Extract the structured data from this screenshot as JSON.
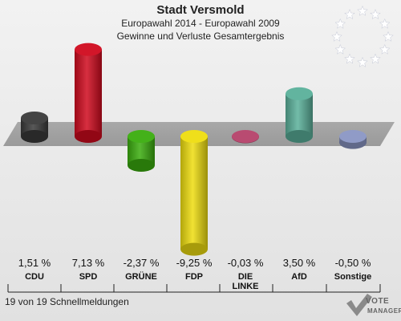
{
  "header": {
    "title": "Stadt Versmold",
    "subtitle": "Europawahl 2014 - Europawahl 2009",
    "subtitle2": "Gewinne und Verluste Gesamtergebnis"
  },
  "footer": {
    "text": "19 von 19 Schnellmeldungen"
  },
  "logo": {
    "name": "VOTE",
    "sub": "MANAGER",
    "icon": "vote-manager-check-icon"
  },
  "emblem": {
    "icon": "eu-stars-icon"
  },
  "chart_data": {
    "type": "bar",
    "title": "Stadt Versmold",
    "categories": [
      "CDU",
      "SPD",
      "GRÜNE",
      "FDP",
      "DIE LINKE",
      "AfD",
      "Sonstige"
    ],
    "category_labels": [
      [
        "CDU"
      ],
      [
        "SPD"
      ],
      [
        "GRÜNE"
      ],
      [
        "FDP"
      ],
      [
        "DIE",
        "LINKE"
      ],
      [
        "AfD"
      ],
      [
        "Sonstige"
      ]
    ],
    "values": [
      1.51,
      7.13,
      -2.37,
      -9.25,
      -0.03,
      3.5,
      -0.5
    ],
    "value_labels": [
      "1,51 %",
      "7,13 %",
      "-2,37 %",
      "-9,25 %",
      "-0,03 %",
      "3,50 %",
      "-0,50 %"
    ],
    "colors": [
      "#3a3a3a",
      "#d00a1e",
      "#3aad0e",
      "#eedd0f",
      "#b5416a",
      "#5ab09a",
      "#8a96c4"
    ],
    "ylim": [
      -10,
      8
    ]
  }
}
